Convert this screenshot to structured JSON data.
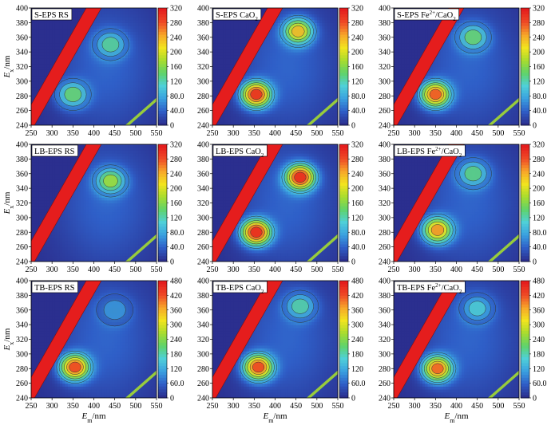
{
  "figure": {
    "xlabel": "Em/nm",
    "ylabel": "Ex/nm",
    "colormap": [
      "#2b2f8f",
      "#2f5fc8",
      "#3aa0e0",
      "#4fd0d8",
      "#5fd36a",
      "#a8dc2e",
      "#f2e41e",
      "#f7a62a",
      "#ef4a26",
      "#e51d1d"
    ]
  },
  "chart_data": [
    {
      "type": "heatmap",
      "title": "S-EPS RS",
      "xlim": [
        250,
        550
      ],
      "ylim": [
        240,
        400
      ],
      "xticks": [
        "250",
        "300",
        "350",
        "400",
        "450",
        "500",
        "550"
      ],
      "yticks": [
        "240",
        "260",
        "280",
        "300",
        "320",
        "340",
        "360",
        "380",
        "400"
      ],
      "colorbar_ticks": [
        "0",
        "40.0",
        "80.0",
        "120",
        "160",
        "200",
        "240",
        "280",
        "320"
      ],
      "zmax": 320,
      "peaks": [
        {
          "em": 350,
          "ex": 282,
          "intensity": 180
        },
        {
          "em": 440,
          "ex": 350,
          "intensity": 160
        }
      ]
    },
    {
      "type": "heatmap",
      "title": "S-EPS CaO2",
      "xlim": [
        250,
        550
      ],
      "ylim": [
        240,
        400
      ],
      "xticks": [
        "250",
        "300",
        "350",
        "400",
        "450",
        "500",
        "550"
      ],
      "yticks": [
        "240",
        "260",
        "280",
        "300",
        "320",
        "340",
        "360",
        "380",
        "400"
      ],
      "colorbar_ticks": [
        "0",
        "40.0",
        "80.0",
        "120",
        "160",
        "200",
        "240",
        "280",
        "320"
      ],
      "zmax": 320,
      "peaks": [
        {
          "em": 355,
          "ex": 282,
          "intensity": 330
        },
        {
          "em": 455,
          "ex": 368,
          "intensity": 260
        }
      ]
    },
    {
      "type": "heatmap",
      "title": "S-EPS Fe2+/CaO2",
      "xlim": [
        250,
        550
      ],
      "ylim": [
        240,
        400
      ],
      "xticks": [
        "250",
        "300",
        "350",
        "400",
        "450",
        "500",
        "550"
      ],
      "yticks": [
        "240",
        "260",
        "280",
        "300",
        "320",
        "340",
        "360",
        "380",
        "400"
      ],
      "colorbar_ticks": [
        "0",
        "40.0",
        "80.0",
        "120",
        "160",
        "200",
        "240",
        "280",
        "320"
      ],
      "zmax": 320,
      "peaks": [
        {
          "em": 350,
          "ex": 282,
          "intensity": 300
        },
        {
          "em": 440,
          "ex": 360,
          "intensity": 180
        }
      ]
    },
    {
      "type": "heatmap",
      "title": "LB-EPS RS",
      "xlim": [
        250,
        550
      ],
      "ylim": [
        240,
        400
      ],
      "xticks": [
        "250",
        "300",
        "350",
        "400",
        "450",
        "500",
        "550"
      ],
      "yticks": [
        "240",
        "260",
        "280",
        "300",
        "320",
        "340",
        "360",
        "380",
        "400"
      ],
      "colorbar_ticks": [
        "0",
        "40.0",
        "80.0",
        "120",
        "160",
        "200",
        "240",
        "280",
        "320"
      ],
      "zmax": 320,
      "peaks": [
        {
          "em": 440,
          "ex": 350,
          "intensity": 200
        }
      ]
    },
    {
      "type": "heatmap",
      "title": "LB-EPS CaO2",
      "xlim": [
        250,
        550
      ],
      "ylim": [
        240,
        400
      ],
      "xticks": [
        "250",
        "300",
        "350",
        "400",
        "450",
        "500",
        "550"
      ],
      "yticks": [
        "240",
        "260",
        "280",
        "300",
        "320",
        "340",
        "360",
        "380",
        "400"
      ],
      "colorbar_ticks": [
        "0",
        "40.0",
        "80.0",
        "120",
        "160",
        "200",
        "240",
        "280",
        "320"
      ],
      "zmax": 320,
      "peaks": [
        {
          "em": 355,
          "ex": 280,
          "intensity": 340
        },
        {
          "em": 460,
          "ex": 355,
          "intensity": 340
        }
      ]
    },
    {
      "type": "heatmap",
      "title": "LB-EPS Fe2+/CaO2",
      "xlim": [
        250,
        550
      ],
      "ylim": [
        240,
        400
      ],
      "xticks": [
        "250",
        "300",
        "350",
        "400",
        "450",
        "500",
        "550"
      ],
      "yticks": [
        "240",
        "260",
        "280",
        "300",
        "320",
        "340",
        "360",
        "380",
        "400"
      ],
      "colorbar_ticks": [
        "0",
        "40.0",
        "80.0",
        "120",
        "160",
        "200",
        "240",
        "280",
        "320"
      ],
      "zmax": 320,
      "peaks": [
        {
          "em": 355,
          "ex": 283,
          "intensity": 280
        },
        {
          "em": 440,
          "ex": 360,
          "intensity": 170
        }
      ]
    },
    {
      "type": "heatmap",
      "title": "TB-EPS RS",
      "xlim": [
        250,
        550
      ],
      "ylim": [
        240,
        400
      ],
      "xticks": [
        "250",
        "300",
        "350",
        "400",
        "450",
        "500",
        "550"
      ],
      "yticks": [
        "240",
        "260",
        "280",
        "300",
        "320",
        "340",
        "360",
        "380",
        "400"
      ],
      "colorbar_ticks": [
        "0",
        "60.0",
        "120",
        "180",
        "240",
        "300",
        "360",
        "420",
        "480"
      ],
      "zmax": 480,
      "peaks": [
        {
          "em": 355,
          "ex": 282,
          "intensity": 470
        },
        {
          "em": 450,
          "ex": 360,
          "intensity": 150
        }
      ]
    },
    {
      "type": "heatmap",
      "title": "TB-EPS CaO2",
      "xlim": [
        250,
        550
      ],
      "ylim": [
        240,
        400
      ],
      "xticks": [
        "250",
        "300",
        "350",
        "400",
        "450",
        "500",
        "550"
      ],
      "yticks": [
        "240",
        "260",
        "280",
        "300",
        "320",
        "340",
        "360",
        "380",
        "400"
      ],
      "colorbar_ticks": [
        "0",
        "60.0",
        "120",
        "180",
        "240",
        "300",
        "360",
        "420",
        "480"
      ],
      "zmax": 480,
      "peaks": [
        {
          "em": 360,
          "ex": 282,
          "intensity": 470
        },
        {
          "em": 460,
          "ex": 365,
          "intensity": 230
        }
      ]
    },
    {
      "type": "heatmap",
      "title": "TB-EPS Fe2+/CaO2",
      "xlim": [
        250,
        550
      ],
      "ylim": [
        240,
        400
      ],
      "xticks": [
        "250",
        "300",
        "350",
        "400",
        "450",
        "500",
        "550"
      ],
      "yticks": [
        "240",
        "260",
        "280",
        "300",
        "320",
        "340",
        "360",
        "380",
        "400"
      ],
      "colorbar_ticks": [
        "0",
        "60.0",
        "120",
        "180",
        "240",
        "300",
        "360",
        "420",
        "480"
      ],
      "zmax": 480,
      "peaks": [
        {
          "em": 355,
          "ex": 280,
          "intensity": 440
        },
        {
          "em": 450,
          "ex": 362,
          "intensity": 200
        }
      ]
    }
  ]
}
